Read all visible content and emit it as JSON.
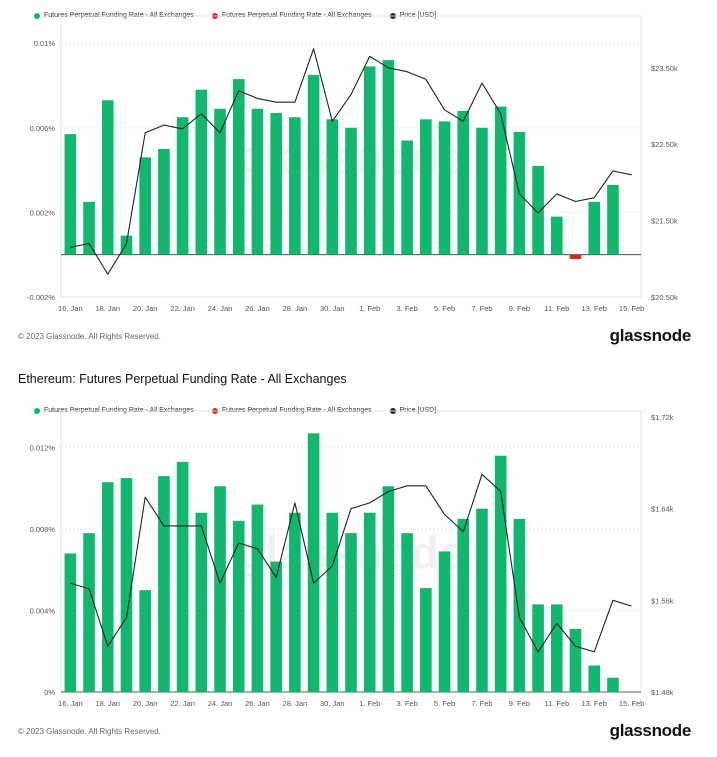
{
  "page": {
    "title": "Ethereum: Futures Perpetual Funding Rate - All Exchanges",
    "copyright": "© 2023 Glassnode. All Rights Reserved.",
    "logo": "glassnode",
    "watermark": "glassnode"
  },
  "legend": {
    "positive": "Futures Perpetual Funding Rate - All Exchanges",
    "negative": "Futures Perpetual Funding Rate - All Exchanges",
    "price": "Price [USD]"
  },
  "colors": {
    "positive": "#0fb86c",
    "negative": "#e0211b",
    "price": "#222222",
    "grid": "#d9d9d9",
    "axis_text": "#555555"
  },
  "chart_data": [
    {
      "type": "bar",
      "title": "",
      "xlabel": "",
      "ylabel": "",
      "categories": [
        "16. Jan",
        "17. Jan",
        "18. Jan",
        "19. Jan",
        "20. Jan",
        "21. Jan",
        "22. Jan",
        "23. Jan",
        "24. Jan",
        "25. Jan",
        "26. Jan",
        "27. Jan",
        "28. Jan",
        "29. Jan",
        "30. Jan",
        "31. Jan",
        "1. Feb",
        "2. Feb",
        "3. Feb",
        "4. Feb",
        "5. Feb",
        "6. Feb",
        "7. Feb",
        "8. Feb",
        "9. Feb",
        "10. Feb",
        "11. Feb",
        "12. Feb",
        "13. Feb",
        "14. Feb",
        "15. Feb"
      ],
      "x_tick_labels": [
        "16. Jan",
        "18. Jan",
        "20. Jan",
        "22. Jan",
        "24. Jan",
        "26. Jan",
        "28. Jan",
        "30. Jan",
        "1. Feb",
        "3. Feb",
        "5. Feb",
        "7. Feb",
        "9. Feb",
        "11. Feb",
        "13. Feb",
        "15. Feb"
      ],
      "series": [
        {
          "name": "Futures Perpetual Funding Rate - All Exchanges",
          "axis": "left",
          "values": [
            0.0057,
            0.0025,
            0.0073,
            0.0009,
            0.0046,
            0.005,
            0.0065,
            0.0078,
            0.0069,
            0.0083,
            0.0069,
            0.0067,
            0.0065,
            0.0085,
            0.0064,
            0.006,
            0.0089,
            0.0092,
            0.0054,
            0.0064,
            0.0063,
            0.0068,
            0.006,
            0.007,
            0.0058,
            0.0042,
            0.0018,
            -0.0002,
            0.0025,
            0.0033,
            null
          ]
        },
        {
          "name": "Price [USD]",
          "axis": "right",
          "type": "line",
          "values": [
            21150,
            21200,
            20800,
            21200,
            22650,
            22750,
            22700,
            22900,
            22650,
            23200,
            23100,
            23050,
            23050,
            23750,
            22800,
            23150,
            23650,
            23500,
            23450,
            23350,
            22950,
            22800,
            23300,
            22900,
            21850,
            21600,
            21850,
            21750,
            21800,
            22150,
            22100
          ]
        }
      ],
      "ylim": [
        -0.002,
        0.011
      ],
      "y_ticks": [
        "-0.002%",
        "0.002%",
        "0.006%",
        "0.01%"
      ],
      "y2lim": [
        20500,
        24100
      ],
      "y2_ticks": [
        "$20.50k",
        "$21.50k",
        "$22.50k",
        "$23.50k"
      ],
      "grid": true,
      "legend_position": "top-left"
    },
    {
      "type": "bar",
      "title": "Ethereum: Futures Perpetual Funding Rate - All Exchanges",
      "xlabel": "",
      "ylabel": "",
      "categories": [
        "16. Jan",
        "17. Jan",
        "18. Jan",
        "19. Jan",
        "20. Jan",
        "21. Jan",
        "22. Jan",
        "23. Jan",
        "24. Jan",
        "25. Jan",
        "26. Jan",
        "27. Jan",
        "28. Jan",
        "29. Jan",
        "30. Jan",
        "31. Jan",
        "1. Feb",
        "2. Feb",
        "3. Feb",
        "4. Feb",
        "5. Feb",
        "6. Feb",
        "7. Feb",
        "8. Feb",
        "9. Feb",
        "10. Feb",
        "11. Feb",
        "12. Feb",
        "13. Feb",
        "14. Feb",
        "15. Feb"
      ],
      "x_tick_labels": [
        "16. Jan",
        "18. Jan",
        "20. Jan",
        "22. Jan",
        "24. Jan",
        "26. Jan",
        "28. Jan",
        "30. Jan",
        "1. Feb",
        "3. Feb",
        "5. Feb",
        "7. Feb",
        "9. Feb",
        "11. Feb",
        "13. Feb",
        "15. Feb"
      ],
      "series": [
        {
          "name": "Futures Perpetual Funding Rate - All Exchanges",
          "axis": "left",
          "values": [
            0.0068,
            0.0078,
            0.0103,
            0.0105,
            0.005,
            0.0106,
            0.0113,
            0.0088,
            0.0101,
            0.0084,
            0.0092,
            0.0064,
            0.0088,
            0.0127,
            0.0088,
            0.0078,
            0.0088,
            0.0101,
            0.0078,
            0.0051,
            0.0069,
            0.0085,
            0.009,
            0.0116,
            0.0085,
            0.0043,
            0.0043,
            0.0031,
            0.0013,
            0.0007,
            null
          ]
        },
        {
          "name": "Price [USD]",
          "axis": "right",
          "type": "line",
          "values": [
            1575,
            1570,
            1520,
            1545,
            1650,
            1625,
            1625,
            1625,
            1575,
            1610,
            1605,
            1580,
            1645,
            1575,
            1590,
            1640,
            1645,
            1655,
            1660,
            1660,
            1635,
            1620,
            1670,
            1655,
            1545,
            1515,
            1540,
            1520,
            1515,
            1560,
            1555
          ]
        }
      ],
      "ylim": [
        0,
        0.0135
      ],
      "y_ticks": [
        "0%",
        "0.004%",
        "0.008%",
        "0.012%"
      ],
      "y2lim": [
        1480,
        1720
      ],
      "y2_ticks": [
        "$1.48k",
        "$1.56k",
        "$1.64k",
        "$1.72k"
      ],
      "grid": true,
      "legend_position": "top-left"
    }
  ]
}
